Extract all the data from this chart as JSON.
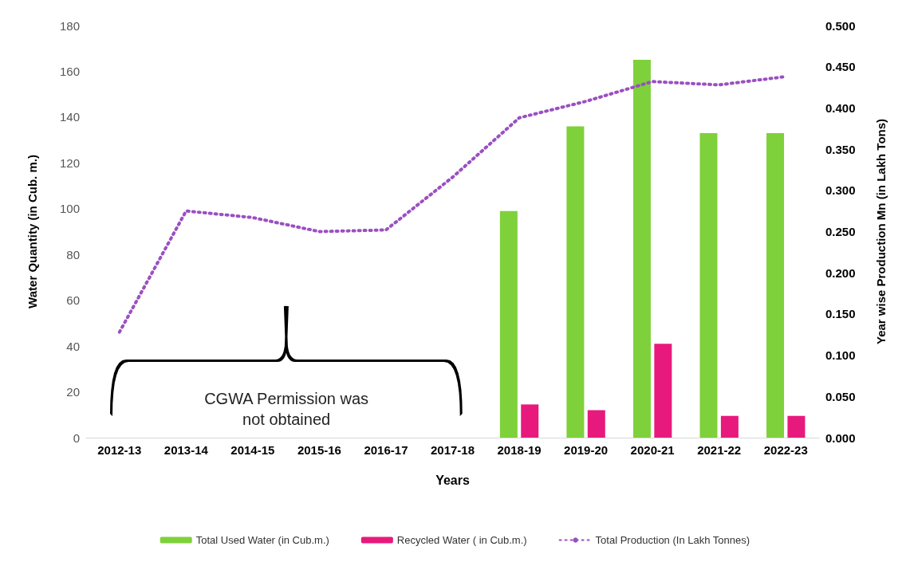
{
  "chart_data": {
    "type": "bar",
    "xlabel": "Years",
    "ylabel": "Water Quantity (in Cub. m.)",
    "y2label": "Year wise Production Mn (in Lakh Tons)",
    "categories": [
      "2012-13",
      "2013-14",
      "2014-15",
      "2015-16",
      "2016-17",
      "2017-18",
      "2018-19",
      "2019-20",
      "2020-21",
      "2021-22",
      "2022-23"
    ],
    "series": [
      {
        "name": "Total Used Water (in Cub.m.)",
        "color": "#7ed13a",
        "values": [
          null,
          null,
          null,
          null,
          null,
          null,
          99,
          136,
          165,
          133,
          133
        ]
      },
      {
        "name": "Recycled Water ( in Cub.m.)",
        "color": "#e8197d",
        "values": [
          null,
          null,
          null,
          null,
          null,
          null,
          14.5,
          12,
          41,
          9.5,
          9.5
        ]
      },
      {
        "name": "Total Production (In Lakh Tonnes)",
        "type": "line",
        "axis": "y2",
        "color": "#9b4fc2",
        "line_style": "dotted",
        "marker": "none",
        "values": [
          0.128,
          0.275,
          0.267,
          0.25,
          0.252,
          0.316,
          0.388,
          0.408,
          0.432,
          0.428,
          0.438
        ]
      }
    ],
    "ylim": [
      0,
      180
    ],
    "yticks": [
      0,
      20,
      40,
      60,
      80,
      100,
      120,
      140,
      160,
      180
    ],
    "y2lim": [
      0,
      0.5
    ],
    "y2ticks": [
      {
        "value": 0,
        "label": "0.000"
      },
      {
        "value": 0.05,
        "label": "0.050"
      },
      {
        "value": 0.1,
        "label": "0.100"
      },
      {
        "value": 0.15,
        "label": "0.150"
      },
      {
        "value": 0.2,
        "label": "0.200"
      },
      {
        "value": 0.25,
        "label": "0.250"
      },
      {
        "value": 0.3,
        "label": "0.300"
      },
      {
        "value": 0.35,
        "label": "0.350"
      },
      {
        "value": 0.4,
        "label": "0.400"
      },
      {
        "value": 0.45,
        "label": "0.450"
      },
      {
        "value": 0.5,
        "label": "0.500"
      }
    ],
    "grid": false,
    "legend": "bottom",
    "annotations": [
      "CGWA Permission was not obtained"
    ]
  }
}
